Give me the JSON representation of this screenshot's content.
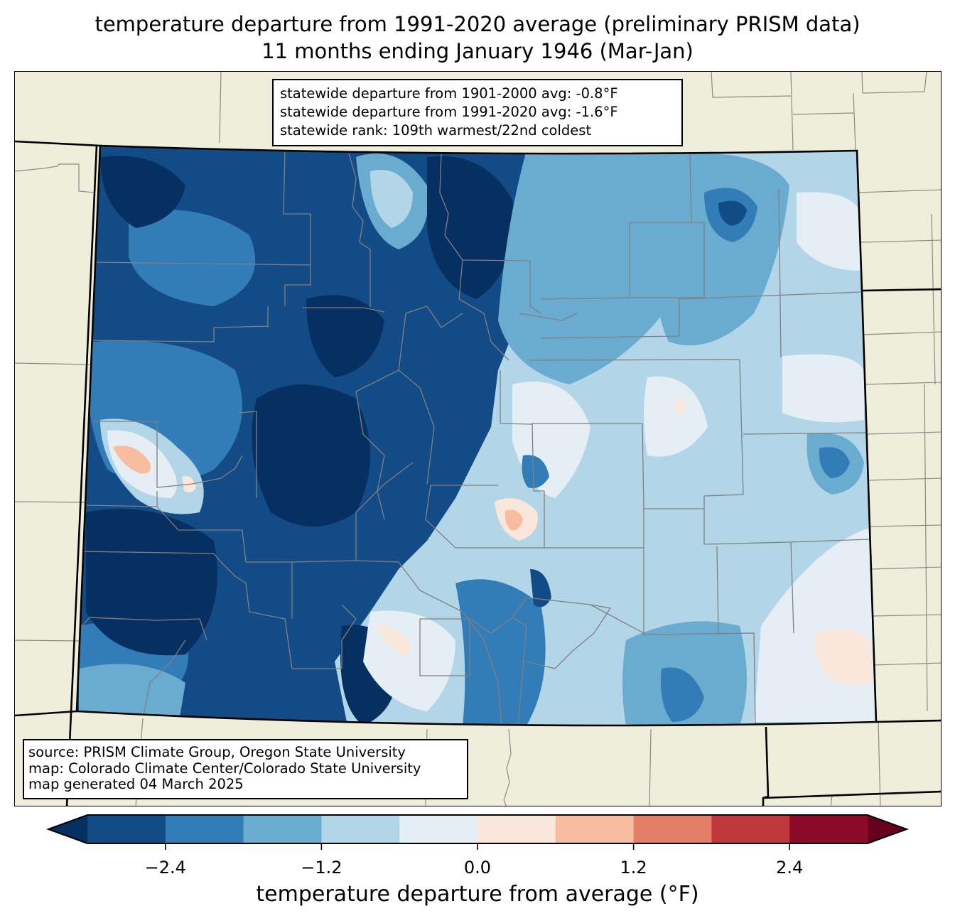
{
  "title": {
    "line1": "temperature departure from 1991-2020 average (preliminary PRISM data)",
    "line2": "11 months ending January 1946 (Mar-Jan)"
  },
  "stats_box": {
    "line1": "statewide departure from 1901-2000 avg: -0.8°F",
    "line2": "statewide departure from 1991-2020 avg: -1.6°F",
    "line3": "statewide rank: 109th warmest/22nd coldest"
  },
  "source_box": {
    "line1": "source: PRISM Climate Group, Oregon State University",
    "line2": "map: Colorado Climate Center/Colorado State University",
    "line3": "map generated 04 March 2025"
  },
  "colorbar": {
    "label": "temperature departure from average (°F)",
    "range": [
      -3.0,
      3.0
    ],
    "step": 0.6,
    "extend": "both",
    "ticks": [
      -2.4,
      -1.2,
      0.0,
      1.2,
      2.4
    ],
    "tick_labels": [
      "−2.4",
      "−1.2",
      "0.0",
      "1.2",
      "2.4"
    ],
    "under_color": "#053061",
    "over_color": "#67001f",
    "bin_colors": [
      "#134b87",
      "#327cb8",
      "#6aacd0",
      "#b2d5e8",
      "#e4eef4",
      "#fae7dc",
      "#f8bca1",
      "#e17e65",
      "#c0383b",
      "#8b0a26"
    ]
  },
  "colors": {
    "land": "#efeedb",
    "county_line": "#808080",
    "state_line": "#000000"
  }
}
